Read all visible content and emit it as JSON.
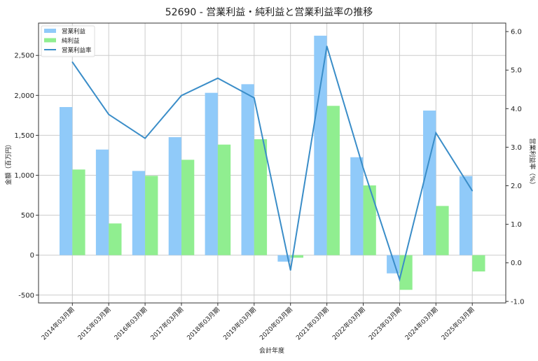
{
  "chart_data": {
    "type": "bar",
    "title": "52690 - 営業利益・純利益と営業利益率の推移",
    "xlabel": "会計年度",
    "ylabel": "金額（百万円）",
    "y2label": "営業利益率（%）",
    "categories": [
      "2014年03月期",
      "2015年03月期",
      "2016年03月期",
      "2017年03月期",
      "2018年03月期",
      "2019年03月期",
      "2020年03月期",
      "2021年03月期",
      "2022年03月期",
      "2023年03月期",
      "2024年03月期",
      "2025年03月期"
    ],
    "series": [
      {
        "name": "営業利益",
        "type": "bar",
        "axis": "left",
        "color": "#90caf9",
        "values": [
          1854,
          1322,
          1054,
          1477,
          2032,
          2140,
          -81,
          2747,
          1226,
          -228,
          1810,
          990
        ]
      },
      {
        "name": "純利益",
        "type": "bar",
        "axis": "left",
        "color": "#90ee90",
        "values": [
          1072,
          397,
          993,
          1194,
          1384,
          1451,
          -32,
          1869,
          873,
          -434,
          616,
          -204
        ]
      },
      {
        "name": "営業利益率",
        "type": "line",
        "axis": "right",
        "color": "#3a8dc8",
        "values": [
          5.21,
          3.85,
          3.23,
          4.34,
          4.79,
          4.28,
          -0.19,
          5.62,
          2.46,
          -0.43,
          3.37,
          1.87
        ]
      }
    ],
    "ylim": [
      -598,
      2905
    ],
    "y2lim": [
      -1.04,
      6.22
    ],
    "yticks": [
      -500,
      0,
      500,
      1000,
      1500,
      2000,
      2500
    ],
    "yticklabels": [
      "-500",
      "0",
      "500",
      "1,000",
      "1,500",
      "2,000",
      "2,500"
    ],
    "y2ticks": [
      -1.0,
      0.0,
      1.0,
      2.0,
      3.0,
      4.0,
      5.0,
      6.0
    ],
    "y2ticklabels": [
      "-1.0",
      "0.0",
      "1.0",
      "2.0",
      "3.0",
      "4.0",
      "5.0",
      "6.0"
    ],
    "grid": true,
    "legend_position": "top-left"
  }
}
